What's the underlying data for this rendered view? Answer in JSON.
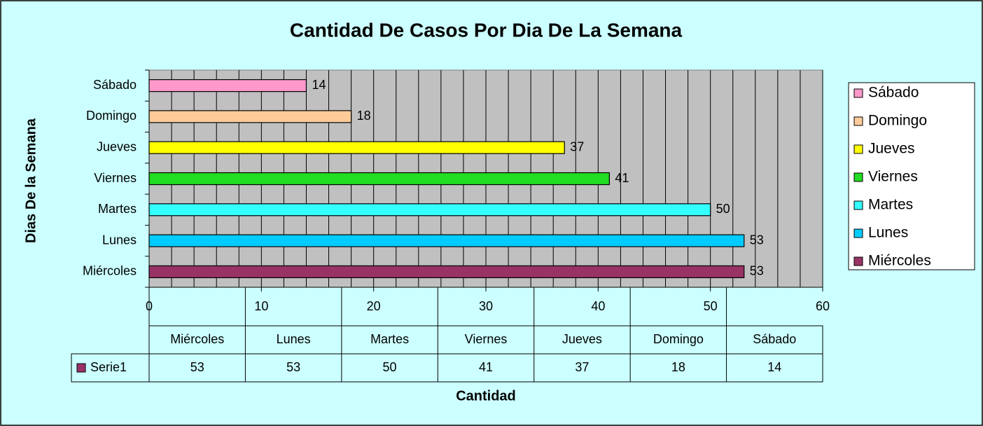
{
  "chart_data": {
    "type": "bar",
    "orientation": "horizontal",
    "title": "Cantidad De Casos Por Dia De La Semana",
    "x_label": "Cantidad",
    "y_label": "Dias De la Semana",
    "categories": [
      "Miércoles",
      "Lunes",
      "Martes",
      "Viernes",
      "Jueves",
      "Domingo",
      "Sábado"
    ],
    "series": [
      {
        "name": "Serie1",
        "color": "#993366",
        "values": [
          53,
          53,
          50,
          41,
          37,
          18,
          14
        ]
      }
    ],
    "point_colors": [
      "#993366",
      "#00ccff",
      "#33ffff",
      "#22dd22",
      "#ffff00",
      "#ffcc99",
      "#ff99cc"
    ],
    "xlim": [
      0,
      60
    ],
    "xticks": [
      0,
      10,
      20,
      30,
      40,
      50,
      60
    ],
    "xminor_ticks": [
      0,
      2,
      4,
      6,
      8,
      10,
      12,
      14,
      16,
      18,
      20,
      22,
      24,
      26,
      28,
      30,
      32,
      34,
      36,
      38,
      40,
      42,
      44,
      46,
      48,
      50,
      52,
      54,
      56,
      58,
      60
    ],
    "grid": true,
    "legend": "right",
    "data_table": true
  }
}
